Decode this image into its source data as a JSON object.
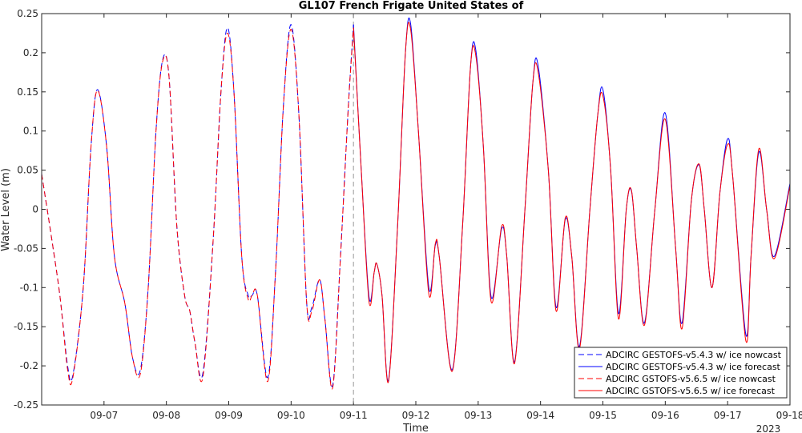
{
  "chart_data": {
    "type": "line",
    "title": "GL107 French Frigate United States of",
    "xlabel": "Time",
    "ylabel": "Water Level (m)",
    "xlim": [
      "2023-09-06",
      "2023-09-18"
    ],
    "ylim": [
      -0.25,
      0.25
    ],
    "x_ticks": [
      "09-07",
      "09-08",
      "09-09",
      "09-10",
      "09-11",
      "09-12",
      "09-13",
      "09-14",
      "09-15",
      "09-16",
      "09-17",
      "09-18"
    ],
    "x_secondary_label": "2023",
    "y_ticks": [
      "-0.25",
      "-0.2",
      "-0.15",
      "-0.1",
      "-0.05",
      "0",
      "0.05",
      "0.1",
      "0.15",
      "0.2",
      "0.25"
    ],
    "nowcast_forecast_divider": "2023-09-11",
    "legend_position": "bottom-right",
    "series": [
      {
        "name": "ADCIRC GESTOFS-v5.4.3 w/ ice nowcast",
        "color": "#0000ff",
        "style": "dashed",
        "points": [
          [
            "2023-09-06 00:00",
            0.045
          ],
          [
            "2023-09-06 03:30",
            -0.03
          ],
          [
            "2023-09-06 07:00",
            -0.11
          ],
          [
            "2023-09-06 10:00",
            -0.2
          ],
          [
            "2023-09-06 12:00",
            -0.212
          ],
          [
            "2023-09-06 16:00",
            -0.1
          ],
          [
            "2023-09-06 19:00",
            0.08
          ],
          [
            "2023-09-06 21:30",
            0.153
          ],
          [
            "2023-09-07 01:00",
            0.08
          ],
          [
            "2023-09-07 04:00",
            -0.06
          ],
          [
            "2023-09-07 08:00",
            -0.12
          ],
          [
            "2023-09-07 11:00",
            -0.19
          ],
          [
            "2023-09-07 14:00",
            -0.205
          ],
          [
            "2023-09-07 17:00",
            -0.1
          ],
          [
            "2023-09-07 20:00",
            0.1
          ],
          [
            "2023-09-07 22:30",
            0.19
          ],
          [
            "2023-09-08 01:00",
            0.17
          ],
          [
            "2023-09-08 04:00",
            -0.02
          ],
          [
            "2023-09-08 07:00",
            -0.11
          ],
          [
            "2023-09-08 09:00",
            -0.13
          ],
          [
            "2023-09-08 11:00",
            -0.17
          ],
          [
            "2023-09-08 14:00",
            -0.21
          ],
          [
            "2023-09-08 18:00",
            -0.04
          ],
          [
            "2023-09-08 21:00",
            0.15
          ],
          [
            "2023-09-08 23:30",
            0.232
          ],
          [
            "2023-09-09 02:00",
            0.15
          ],
          [
            "2023-09-09 05:00",
            -0.06
          ],
          [
            "2023-09-09 07:30",
            -0.11
          ],
          [
            "2023-09-09 09:00",
            -0.11
          ],
          [
            "2023-09-09 11:00",
            -0.11
          ],
          [
            "2023-09-09 15:00",
            -0.215
          ],
          [
            "2023-09-09 18:00",
            -0.08
          ],
          [
            "2023-09-09 21:00",
            0.13
          ],
          [
            "2023-09-10 00:00",
            0.236
          ],
          [
            "2023-09-10 03:00",
            0.12
          ],
          [
            "2023-09-10 06:00",
            -0.12
          ],
          [
            "2023-09-10 08:00",
            -0.125
          ],
          [
            "2023-09-10 11:00",
            -0.09
          ],
          [
            "2023-09-10 13:00",
            -0.14
          ],
          [
            "2023-09-10 16:00",
            -0.225
          ],
          [
            "2023-09-10 19:00",
            -0.06
          ],
          [
            "2023-09-10 22:00",
            0.13
          ],
          [
            "2023-09-11 00:00",
            0.236
          ]
        ]
      },
      {
        "name": "ADCIRC GESTOFS-v5.4.3 w/ ice forecast",
        "color": "#0000ff",
        "style": "solid",
        "points": [
          [
            "2023-09-11 00:00",
            0.236
          ],
          [
            "2023-09-11 03:00",
            0.05
          ],
          [
            "2023-09-11 06:00",
            -0.112
          ],
          [
            "2023-09-11 08:00",
            -0.08
          ],
          [
            "2023-09-11 09:00",
            -0.07
          ],
          [
            "2023-09-11 11:00",
            -0.11
          ],
          [
            "2023-09-11 13:30",
            -0.218
          ],
          [
            "2023-09-11 17:00",
            -0.02
          ],
          [
            "2023-09-11 20:00",
            0.2
          ],
          [
            "2023-09-11 22:00",
            0.237
          ],
          [
            "2023-09-12 01:00",
            0.1
          ],
          [
            "2023-09-12 05:00",
            -0.1
          ],
          [
            "2023-09-12 07:30",
            -0.046
          ],
          [
            "2023-09-12 09:00",
            -0.06
          ],
          [
            "2023-09-12 14:00",
            -0.205
          ],
          [
            "2023-09-12 18:00",
            -0.02
          ],
          [
            "2023-09-12 21:00",
            0.18
          ],
          [
            "2023-09-12 23:00",
            0.205
          ],
          [
            "2023-09-13 02:00",
            0.08
          ],
          [
            "2023-09-13 05:00",
            -0.112
          ],
          [
            "2023-09-13 09:00",
            -0.025
          ],
          [
            "2023-09-13 11:00",
            -0.06
          ],
          [
            "2023-09-13 14:00",
            -0.195
          ],
          [
            "2023-09-13 18:00",
            0.0
          ],
          [
            "2023-09-13 21:00",
            0.16
          ],
          [
            "2023-09-13 23:00",
            0.185
          ],
          [
            "2023-09-14 03:00",
            0.05
          ],
          [
            "2023-09-14 06:00",
            -0.125
          ],
          [
            "2023-09-14 09:30",
            -0.013
          ],
          [
            "2023-09-14 12:00",
            -0.06
          ],
          [
            "2023-09-14 15:00",
            -0.175
          ],
          [
            "2023-09-14 19:00",
            0.0
          ],
          [
            "2023-09-14 22:00",
            0.12
          ],
          [
            "2023-09-15 00:00",
            0.153
          ],
          [
            "2023-09-15 03:00",
            0.05
          ],
          [
            "2023-09-15 06:00",
            -0.133
          ],
          [
            "2023-09-15 09:00",
            0.0
          ],
          [
            "2023-09-15 11:00",
            0.023
          ],
          [
            "2023-09-15 13:00",
            -0.05
          ],
          [
            "2023-09-15 16:00",
            -0.145
          ],
          [
            "2023-09-15 20:00",
            0.0
          ],
          [
            "2023-09-16 00:00",
            0.123
          ],
          [
            "2023-09-16 04:00",
            -0.05
          ],
          [
            "2023-09-16 06:30",
            -0.145
          ],
          [
            "2023-09-16 10:00",
            0.01
          ],
          [
            "2023-09-16 13:00",
            0.057
          ],
          [
            "2023-09-16 15:00",
            0.0
          ],
          [
            "2023-09-16 18:00",
            -0.1
          ],
          [
            "2023-09-16 21:00",
            0.02
          ],
          [
            "2023-09-17 00:00",
            0.09
          ],
          [
            "2023-09-17 02:00",
            0.04
          ],
          [
            "2023-09-17 07:00",
            -0.16
          ],
          [
            "2023-09-17 09:00",
            -0.06
          ],
          [
            "2023-09-17 12:00",
            0.073
          ],
          [
            "2023-09-17 15:00",
            0.0
          ],
          [
            "2023-09-17 18:00",
            -0.06
          ],
          [
            "2023-09-18 00:00",
            0.033
          ]
        ]
      },
      {
        "name": "ADCIRC GSTOFS-v5.6.5 w/ ice nowcast",
        "color": "#ff0000",
        "style": "dashed",
        "points": [
          [
            "2023-09-06 00:00",
            0.045
          ],
          [
            "2023-09-06 03:30",
            -0.03
          ],
          [
            "2023-09-06 07:00",
            -0.11
          ],
          [
            "2023-09-06 10:00",
            -0.205
          ],
          [
            "2023-09-06 12:00",
            -0.215
          ],
          [
            "2023-09-06 16:00",
            -0.1
          ],
          [
            "2023-09-06 19:00",
            0.08
          ],
          [
            "2023-09-06 21:30",
            0.152
          ],
          [
            "2023-09-07 01:00",
            0.08
          ],
          [
            "2023-09-07 04:00",
            -0.06
          ],
          [
            "2023-09-07 08:00",
            -0.12
          ],
          [
            "2023-09-07 11:00",
            -0.19
          ],
          [
            "2023-09-07 14:00",
            -0.21
          ],
          [
            "2023-09-07 17:00",
            -0.1
          ],
          [
            "2023-09-07 20:00",
            0.1
          ],
          [
            "2023-09-07 22:30",
            0.188
          ],
          [
            "2023-09-08 01:00",
            0.17
          ],
          [
            "2023-09-08 04:00",
            -0.02
          ],
          [
            "2023-09-08 07:00",
            -0.11
          ],
          [
            "2023-09-08 09:00",
            -0.13
          ],
          [
            "2023-09-08 11:00",
            -0.17
          ],
          [
            "2023-09-08 14:00",
            -0.215
          ],
          [
            "2023-09-08 18:00",
            -0.04
          ],
          [
            "2023-09-08 21:00",
            0.15
          ],
          [
            "2023-09-08 23:30",
            0.225
          ],
          [
            "2023-09-09 02:00",
            0.15
          ],
          [
            "2023-09-09 05:00",
            -0.06
          ],
          [
            "2023-09-09 07:30",
            -0.115
          ],
          [
            "2023-09-09 09:00",
            -0.11
          ],
          [
            "2023-09-09 11:00",
            -0.11
          ],
          [
            "2023-09-09 15:00",
            -0.22
          ],
          [
            "2023-09-09 18:00",
            -0.08
          ],
          [
            "2023-09-09 21:00",
            0.13
          ],
          [
            "2023-09-10 00:00",
            0.23
          ],
          [
            "2023-09-10 03:00",
            0.12
          ],
          [
            "2023-09-10 06:00",
            -0.12
          ],
          [
            "2023-09-10 08:00",
            -0.13
          ],
          [
            "2023-09-10 11:00",
            -0.09
          ],
          [
            "2023-09-10 13:00",
            -0.14
          ],
          [
            "2023-09-10 16:00",
            -0.228
          ],
          [
            "2023-09-10 19:00",
            -0.06
          ],
          [
            "2023-09-10 22:00",
            0.13
          ],
          [
            "2023-09-11 00:00",
            0.232
          ]
        ]
      },
      {
        "name": "ADCIRC GSTOFS-v5.6.5 w/ ice forecast",
        "color": "#ff0000",
        "style": "solid",
        "points": [
          [
            "2023-09-11 00:00",
            0.232
          ],
          [
            "2023-09-11 03:00",
            0.05
          ],
          [
            "2023-09-11 06:00",
            -0.118
          ],
          [
            "2023-09-11 08:00",
            -0.08
          ],
          [
            "2023-09-11 09:00",
            -0.07
          ],
          [
            "2023-09-11 11:00",
            -0.11
          ],
          [
            "2023-09-11 13:30",
            -0.22
          ],
          [
            "2023-09-11 17:00",
            -0.02
          ],
          [
            "2023-09-11 20:00",
            0.2
          ],
          [
            "2023-09-11 22:00",
            0.23
          ],
          [
            "2023-09-12 01:00",
            0.1
          ],
          [
            "2023-09-12 05:00",
            -0.108
          ],
          [
            "2023-09-12 07:30",
            -0.044
          ],
          [
            "2023-09-12 09:00",
            -0.06
          ],
          [
            "2023-09-12 14:00",
            -0.207
          ],
          [
            "2023-09-12 18:00",
            -0.02
          ],
          [
            "2023-09-12 21:00",
            0.18
          ],
          [
            "2023-09-12 23:00",
            0.198
          ],
          [
            "2023-09-13 02:00",
            0.08
          ],
          [
            "2023-09-13 05:00",
            -0.118
          ],
          [
            "2023-09-13 09:00",
            -0.022
          ],
          [
            "2023-09-13 11:00",
            -0.06
          ],
          [
            "2023-09-13 14:00",
            -0.197
          ],
          [
            "2023-09-13 18:00",
            0.0
          ],
          [
            "2023-09-13 21:00",
            0.16
          ],
          [
            "2023-09-13 23:00",
            0.177
          ],
          [
            "2023-09-14 03:00",
            0.05
          ],
          [
            "2023-09-14 06:00",
            -0.13
          ],
          [
            "2023-09-14 09:30",
            -0.011
          ],
          [
            "2023-09-14 12:00",
            -0.06
          ],
          [
            "2023-09-14 15:00",
            -0.178
          ],
          [
            "2023-09-14 19:00",
            0.0
          ],
          [
            "2023-09-14 22:00",
            0.12
          ],
          [
            "2023-09-15 00:00",
            0.145
          ],
          [
            "2023-09-15 03:00",
            0.05
          ],
          [
            "2023-09-15 06:00",
            -0.14
          ],
          [
            "2023-09-15 09:00",
            0.0
          ],
          [
            "2023-09-15 11:00",
            0.024
          ],
          [
            "2023-09-15 13:00",
            -0.05
          ],
          [
            "2023-09-15 16:00",
            -0.148
          ],
          [
            "2023-09-15 20:00",
            0.0
          ],
          [
            "2023-09-16 00:00",
            0.115
          ],
          [
            "2023-09-16 04:00",
            -0.05
          ],
          [
            "2023-09-16 06:30",
            -0.152
          ],
          [
            "2023-09-16 10:00",
            0.01
          ],
          [
            "2023-09-16 13:00",
            0.058
          ],
          [
            "2023-09-16 15:00",
            0.0
          ],
          [
            "2023-09-16 18:00",
            -0.1
          ],
          [
            "2023-09-16 21:00",
            0.02
          ],
          [
            "2023-09-17 00:00",
            0.083
          ],
          [
            "2023-09-17 02:00",
            0.04
          ],
          [
            "2023-09-17 07:00",
            -0.168
          ],
          [
            "2023-09-17 09:00",
            -0.06
          ],
          [
            "2023-09-17 12:00",
            0.077
          ],
          [
            "2023-09-17 15:00",
            0.0
          ],
          [
            "2023-09-17 18:00",
            -0.063
          ],
          [
            "2023-09-18 00:00",
            0.03
          ]
        ]
      }
    ]
  }
}
